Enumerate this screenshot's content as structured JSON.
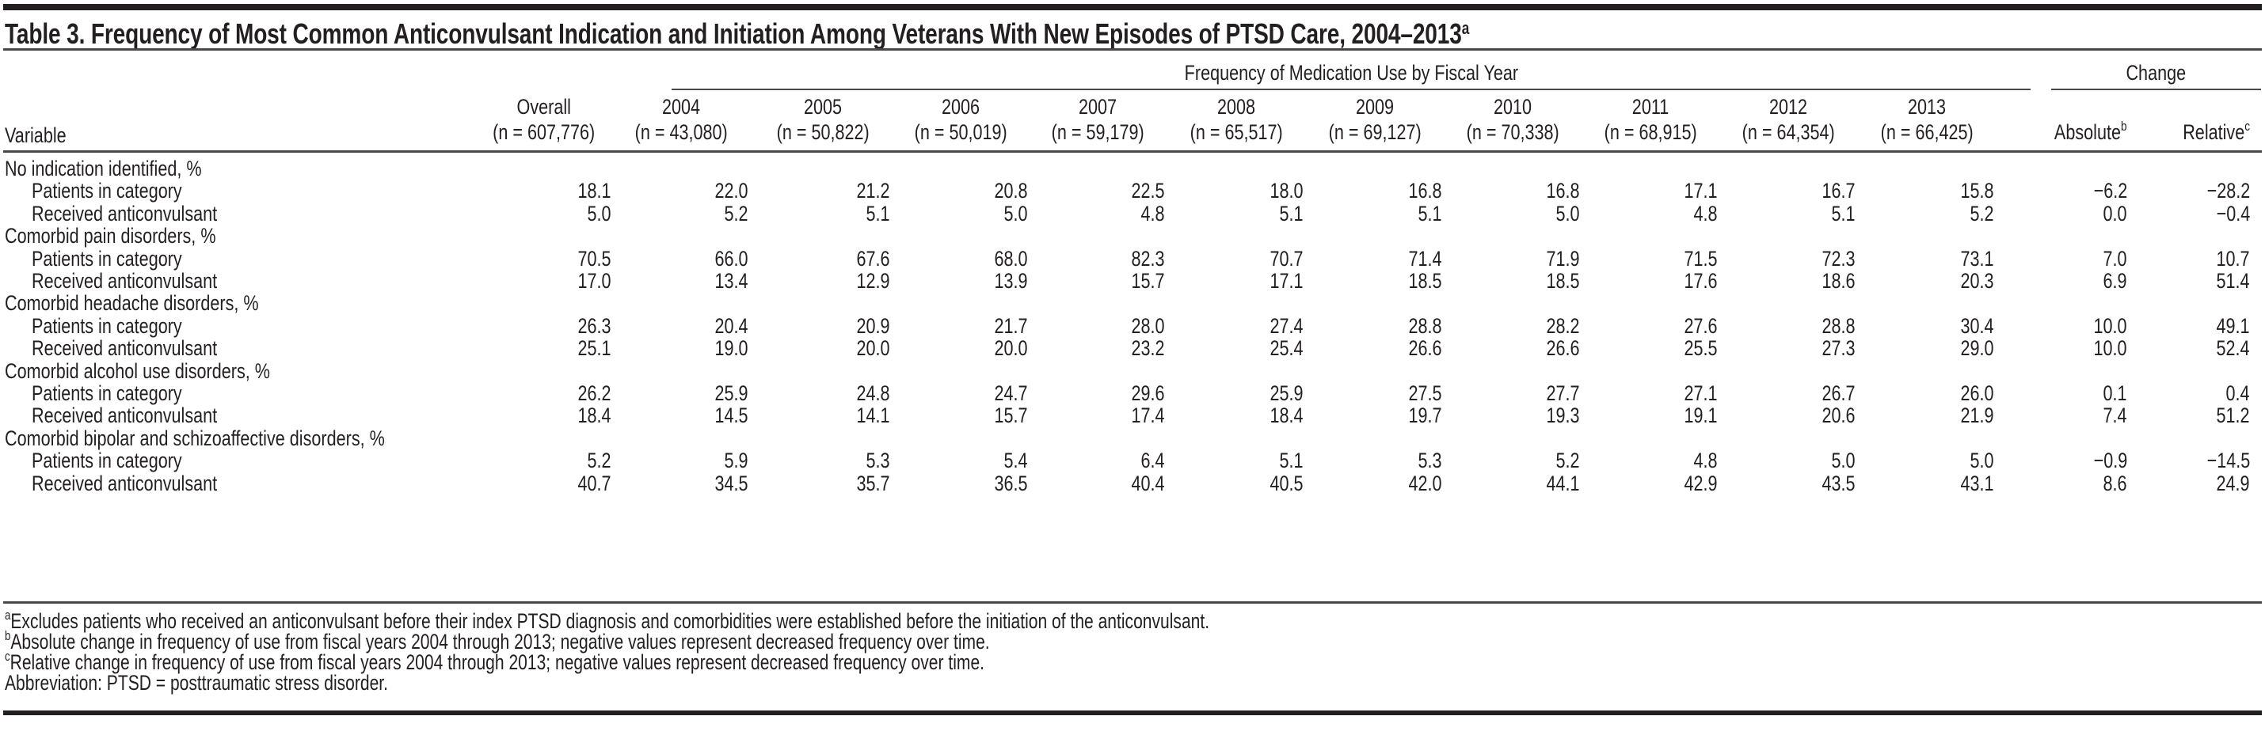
{
  "table": {
    "title": "Table 3. Frequency of Most Common Anticonvulsant Indication and Initiation Among Veterans With New Episodes of PTSD Care, 2004–2013",
    "title_footnote": "a",
    "spanner_frequency": "Frequency of Medication Use by Fiscal Year",
    "spanner_change": "Change",
    "variable_header": "Variable",
    "columns": [
      {
        "label": "Overall",
        "n": "(n = 607,776)"
      },
      {
        "label": "2004",
        "n": "(n = 43,080)"
      },
      {
        "label": "2005",
        "n": "(n = 50,822)"
      },
      {
        "label": "2006",
        "n": "(n = 50,019)"
      },
      {
        "label": "2007",
        "n": "(n = 59,179)"
      },
      {
        "label": "2008",
        "n": "(n = 65,517)"
      },
      {
        "label": "2009",
        "n": "(n = 69,127)"
      },
      {
        "label": "2010",
        "n": "(n = 70,338)"
      },
      {
        "label": "2011",
        "n": "(n = 68,915)"
      },
      {
        "label": "2012",
        "n": "(n = 64,354)"
      },
      {
        "label": "2013",
        "n": "(n = 66,425)"
      },
      {
        "label": "",
        "n": "Absolute",
        "fn": "b"
      },
      {
        "label": "",
        "n": "Relative",
        "fn": "c"
      }
    ],
    "rows": [
      {
        "type": "group",
        "label": "No indication identified, %"
      },
      {
        "type": "data",
        "label": "Patients in category",
        "values": [
          "18.1",
          "22.0",
          "21.2",
          "20.8",
          "22.5",
          "18.0",
          "16.8",
          "16.8",
          "17.1",
          "16.7",
          "15.8",
          "−6.2",
          "−28.2"
        ]
      },
      {
        "type": "data",
        "label": "Received anticonvulsant",
        "values": [
          "5.0",
          "5.2",
          "5.1",
          "5.0",
          "4.8",
          "5.1",
          "5.1",
          "5.0",
          "4.8",
          "5.1",
          "5.2",
          "0.0",
          "−0.4"
        ]
      },
      {
        "type": "group",
        "label": "Comorbid pain disorders, %"
      },
      {
        "type": "data",
        "label": "Patients in category",
        "values": [
          "70.5",
          "66.0",
          "67.6",
          "68.0",
          "82.3",
          "70.7",
          "71.4",
          "71.9",
          "71.5",
          "72.3",
          "73.1",
          "7.0",
          "10.7"
        ]
      },
      {
        "type": "data",
        "label": "Received anticonvulsant",
        "values": [
          "17.0",
          "13.4",
          "12.9",
          "13.9",
          "15.7",
          "17.1",
          "18.5",
          "18.5",
          "17.6",
          "18.6",
          "20.3",
          "6.9",
          "51.4"
        ]
      },
      {
        "type": "group",
        "label": "Comorbid headache disorders, %"
      },
      {
        "type": "data",
        "label": "Patients in category",
        "values": [
          "26.3",
          "20.4",
          "20.9",
          "21.7",
          "28.0",
          "27.4",
          "28.8",
          "28.2",
          "27.6",
          "28.8",
          "30.4",
          "10.0",
          "49.1"
        ]
      },
      {
        "type": "data",
        "label": "Received anticonvulsant",
        "values": [
          "25.1",
          "19.0",
          "20.0",
          "20.0",
          "23.2",
          "25.4",
          "26.6",
          "26.6",
          "25.5",
          "27.3",
          "29.0",
          "10.0",
          "52.4"
        ]
      },
      {
        "type": "group",
        "label": "Comorbid alcohol use disorders, %"
      },
      {
        "type": "data",
        "label": "Patients in category",
        "values": [
          "26.2",
          "25.9",
          "24.8",
          "24.7",
          "29.6",
          "25.9",
          "27.5",
          "27.7",
          "27.1",
          "26.7",
          "26.0",
          "0.1",
          "0.4"
        ]
      },
      {
        "type": "data",
        "label": "Received anticonvulsant",
        "values": [
          "18.4",
          "14.5",
          "14.1",
          "15.7",
          "17.4",
          "18.4",
          "19.7",
          "19.3",
          "19.1",
          "20.6",
          "21.9",
          "7.4",
          "51.2"
        ]
      },
      {
        "type": "group",
        "label": "Comorbid bipolar and schizoaffective disorders, %"
      },
      {
        "type": "data",
        "label": "Patients in category",
        "values": [
          "5.2",
          "5.9",
          "5.3",
          "5.4",
          "6.4",
          "5.1",
          "5.3",
          "5.2",
          "4.8",
          "5.0",
          "5.0",
          "−0.9",
          "−14.5"
        ]
      },
      {
        "type": "data",
        "label": "Received anticonvulsant",
        "values": [
          "40.7",
          "34.5",
          "35.7",
          "36.5",
          "40.4",
          "40.5",
          "42.0",
          "44.1",
          "42.9",
          "43.5",
          "43.1",
          "8.6",
          "24.9"
        ]
      }
    ],
    "footnotes": [
      {
        "mark": "a",
        "text": "Excludes patients who received an anticonvulsant before their index PTSD diagnosis and comorbidities were established before the initiation of the anticonvulsant."
      },
      {
        "mark": "b",
        "text": "Absolute change in frequency of use from fiscal years 2004 through 2013; negative values represent decreased frequency over time."
      },
      {
        "mark": "c",
        "text": "Relative change in frequency of use from fiscal years 2004 through 2013; negative values represent decreased frequency over time."
      },
      {
        "mark": "",
        "text": "Abbreviation: PTSD = posttraumatic stress disorder."
      }
    ]
  }
}
